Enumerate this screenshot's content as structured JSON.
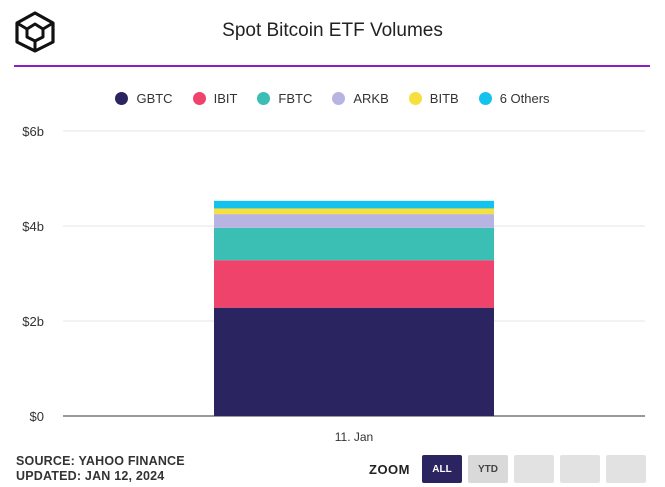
{
  "header": {
    "title": "Spot Bitcoin ETF Volumes",
    "logo_icon": "cube-logo-icon"
  },
  "legend": [
    {
      "name": "GBTC",
      "color": "#2a2460"
    },
    {
      "name": "IBIT",
      "color": "#f0436b"
    },
    {
      "name": "FBTC",
      "color": "#3bbfb4"
    },
    {
      "name": "ARKB",
      "color": "#b7b3e2"
    },
    {
      "name": "BITB",
      "color": "#f7df3e"
    },
    {
      "name": "6 Others",
      "color": "#13c3ee"
    }
  ],
  "chart_data": {
    "type": "bar",
    "stacked": true,
    "categories": [
      "11. Jan"
    ],
    "series": [
      {
        "name": "GBTC",
        "values": [
          2.28
        ]
      },
      {
        "name": "IBIT",
        "values": [
          1.0
        ]
      },
      {
        "name": "FBTC",
        "values": [
          0.68
        ]
      },
      {
        "name": "ARKB",
        "values": [
          0.29
        ]
      },
      {
        "name": "BITB",
        "values": [
          0.12
        ]
      },
      {
        "name": "6 Others",
        "values": [
          0.16
        ]
      }
    ],
    "ylim": [
      0,
      6
    ],
    "yticks": [
      0,
      2,
      4,
      6
    ],
    "ytick_labels": [
      "$0",
      "$2b",
      "$4b",
      "$6b"
    ],
    "grid": true,
    "legend_position": "top"
  },
  "footer": {
    "source": "SOURCE: YAHOO FINANCE",
    "updated": "UPDATED: JAN 12, 2024"
  },
  "zoom": {
    "label": "ZOOM",
    "buttons": [
      {
        "label": "ALL",
        "active": true
      },
      {
        "label": "YTD",
        "active": false
      },
      {
        "label": "",
        "active": false
      },
      {
        "label": "",
        "active": false
      },
      {
        "label": "",
        "active": false
      }
    ]
  }
}
